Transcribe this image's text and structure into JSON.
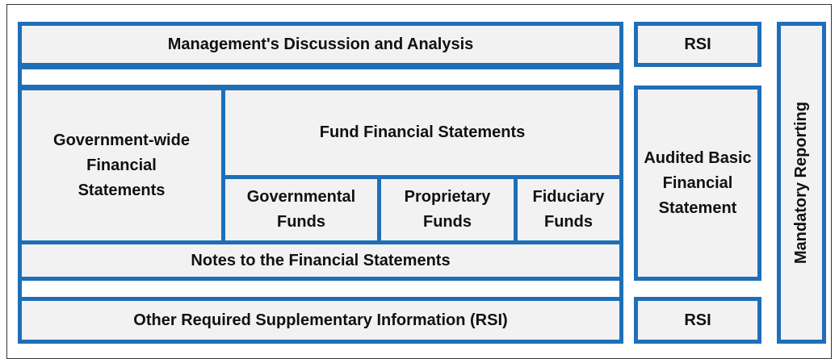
{
  "mdna": "Management's Discussion and Analysis",
  "rsi_top": "RSI",
  "government_wide": "Government-wide Financial Statements",
  "fund_statements": "Fund Financial Statements",
  "governmental_funds": "Governmental Funds",
  "proprietary_funds": "Proprietary Funds",
  "fiduciary_funds": "Fiduciary Funds",
  "notes": "Notes to the Financial Statements",
  "audited": "Audited Basic Financial Statement",
  "other_rsi": "Other Required Supplementary Information (RSI)",
  "rsi_bottom": "RSI",
  "mandatory": "Mandatory Reporting"
}
